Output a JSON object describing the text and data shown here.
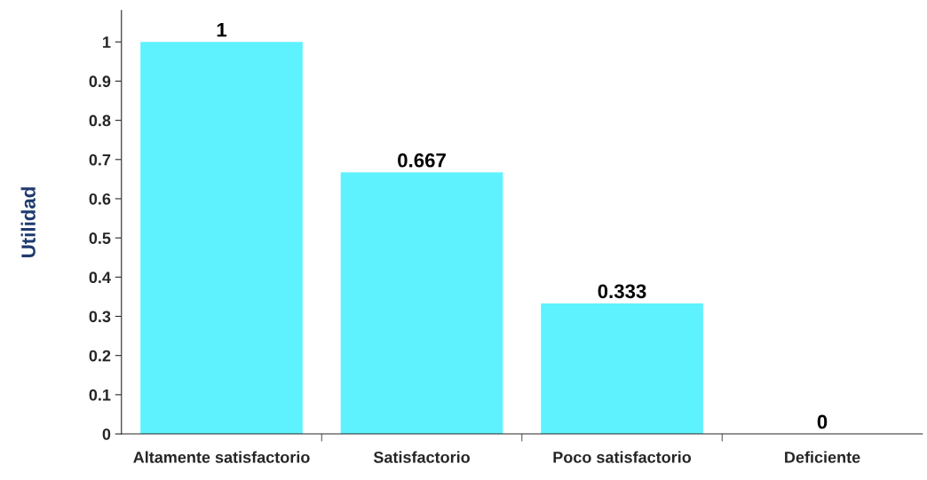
{
  "chart_data": {
    "type": "bar",
    "ylabel": "Utilidad",
    "categories": [
      "Altamente satisfactorio",
      "Satisfactorio",
      "Poco satisfactorio",
      "Deficiente"
    ],
    "values": [
      1,
      0.667,
      0.333,
      0
    ],
    "color": "#5ef2fe",
    "ylim": [
      0,
      1.08
    ],
    "yticks": [
      0,
      0.1,
      0.2,
      0.3,
      0.4,
      0.5,
      0.6,
      0.7,
      0.8,
      0.9,
      1
    ],
    "data_labels": true,
    "grid": false
  }
}
